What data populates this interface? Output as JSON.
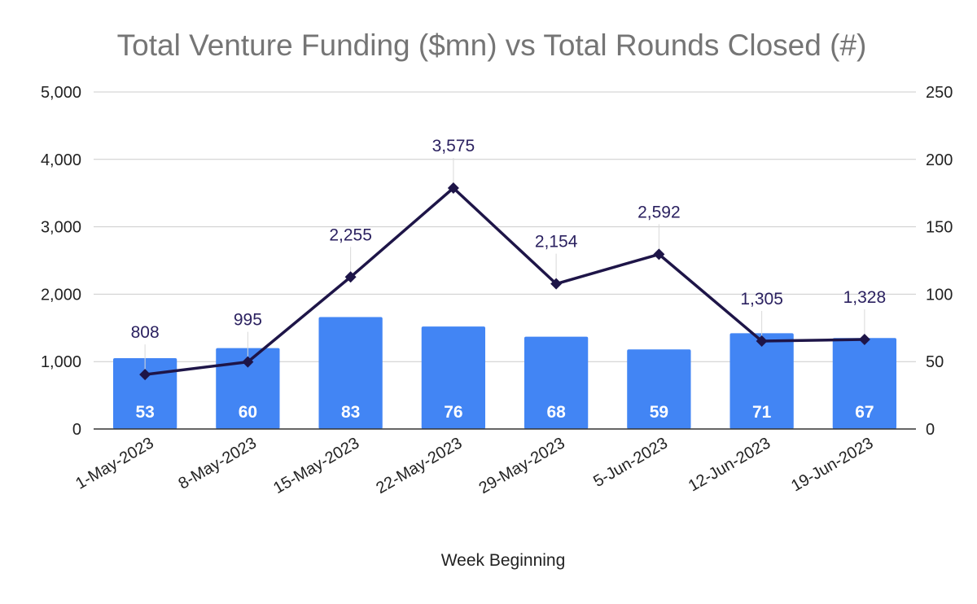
{
  "chart_data": {
    "type": "bar+line",
    "title": "Total Venture Funding ($mn) vs Total Rounds Closed (#)",
    "xlabel": "Week Beginning",
    "categories": [
      "1-May-2023",
      "8-May-2023",
      "15-May-2023",
      "22-May-2023",
      "29-May-2023",
      "5-Jun-2023",
      "12-Jun-2023",
      "19-Jun-2023"
    ],
    "left_axis": {
      "ylim": [
        0,
        5000
      ],
      "ticks": [
        0,
        1000,
        2000,
        3000,
        4000,
        5000
      ],
      "tick_labels": [
        "0",
        "1,000",
        "2,000",
        "3,000",
        "4,000",
        "5,000"
      ]
    },
    "right_axis": {
      "ylim": [
        0,
        250
      ],
      "ticks": [
        0,
        50,
        100,
        150,
        200,
        250
      ],
      "tick_labels": [
        "0",
        "50",
        "100",
        "150",
        "200",
        "250"
      ]
    },
    "series": [
      {
        "name": "Total Venture Funding ($mn)",
        "type": "bar",
        "axis": "left",
        "color": "#4285f4",
        "label_color": "#ffffff",
        "values": [
          1050,
          1200,
          1660,
          1520,
          1370,
          1180,
          1420,
          1350
        ],
        "labels": [
          "53",
          "60",
          "83",
          "76",
          "68",
          "59",
          "71",
          "67"
        ]
      },
      {
        "name": "Total Rounds Closed (#)",
        "type": "line",
        "axis": "right",
        "color": "#1e1548",
        "label_color": "#2b2160",
        "values": [
          40.4,
          49.75,
          112.75,
          178.75,
          107.7,
          129.6,
          65.25,
          66.4
        ],
        "labels": [
          "808",
          "995",
          "2,255",
          "3,575",
          "2,154",
          "2,592",
          "1,305",
          "1,328"
        ]
      }
    ],
    "gridlines": true,
    "legend": "none"
  }
}
